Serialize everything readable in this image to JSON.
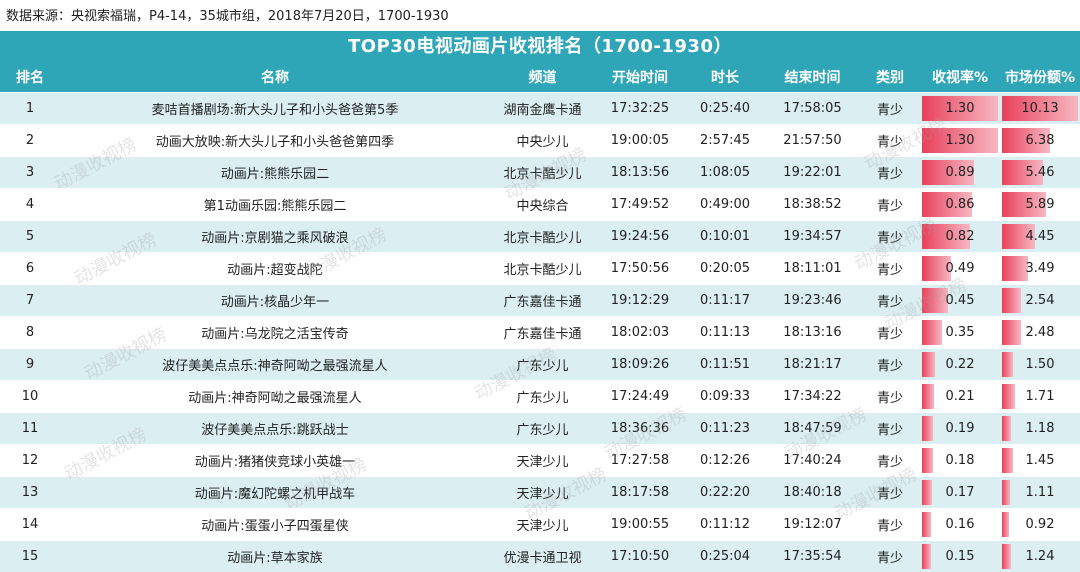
{
  "source_line": "数据来源：央视索福瑞，P4-14，35城市组，2018年7月20日，1700-1930",
  "table_title": "TOP30电视动画片收视排名（1700-1930）",
  "headers": {
    "rank": "排名",
    "name": "名称",
    "channel": "频道",
    "start": "开始时间",
    "duration": "时长",
    "end": "结束时间",
    "type": "类别",
    "rating": "收视率%",
    "share": "市场份额%"
  },
  "colors": {
    "header_bg": "#2fa6b8",
    "row_alt": "#dbeef2",
    "bar": "#e8405a"
  },
  "watermark_text": "动漫收视榜",
  "rows": [
    {
      "rank": "1",
      "name": "麦咭首播剧场:新大头儿子和小头爸爸第5季",
      "channel": "湖南金鹰卡通",
      "start": "17:32:25",
      "duration": "0:25:40",
      "end": "17:58:05",
      "type": "青少",
      "rating": "1.30",
      "share": "10.13"
    },
    {
      "rank": "2",
      "name": "动画大放映:新大头儿子和小头爸爸第四季",
      "channel": "中央少儿",
      "start": "19:00:05",
      "duration": "2:57:45",
      "end": "21:57:50",
      "type": "青少",
      "rating": "1.30",
      "share": "6.38"
    },
    {
      "rank": "3",
      "name": "动画片:熊熊乐园二",
      "channel": "北京卡酷少儿",
      "start": "18:13:56",
      "duration": "1:08:05",
      "end": "19:22:01",
      "type": "青少",
      "rating": "0.89",
      "share": "5.46"
    },
    {
      "rank": "4",
      "name": "第1动画乐园:熊熊乐园二",
      "channel": "中央综合",
      "start": "17:49:52",
      "duration": "0:49:00",
      "end": "18:38:52",
      "type": "青少",
      "rating": "0.86",
      "share": "5.89"
    },
    {
      "rank": "5",
      "name": "动画片:京剧猫之乘风破浪",
      "channel": "北京卡酷少儿",
      "start": "19:24:56",
      "duration": "0:10:01",
      "end": "19:34:57",
      "type": "青少",
      "rating": "0.82",
      "share": "4.45"
    },
    {
      "rank": "6",
      "name": "动画片:超变战陀",
      "channel": "北京卡酷少儿",
      "start": "17:50:56",
      "duration": "0:20:05",
      "end": "18:11:01",
      "type": "青少",
      "rating": "0.49",
      "share": "3.49"
    },
    {
      "rank": "7",
      "name": "动画片:核晶少年一",
      "channel": "广东嘉佳卡通",
      "start": "19:12:29",
      "duration": "0:11:17",
      "end": "19:23:46",
      "type": "青少",
      "rating": "0.45",
      "share": "2.54"
    },
    {
      "rank": "8",
      "name": "动画片:乌龙院之活宝传奇",
      "channel": "广东嘉佳卡通",
      "start": "18:02:03",
      "duration": "0:11:13",
      "end": "18:13:16",
      "type": "青少",
      "rating": "0.35",
      "share": "2.48"
    },
    {
      "rank": "9",
      "name": "波仔美美点点乐:神奇阿呦之最强流星人",
      "channel": "广东少儿",
      "start": "18:09:26",
      "duration": "0:11:51",
      "end": "18:21:17",
      "type": "青少",
      "rating": "0.22",
      "share": "1.50"
    },
    {
      "rank": "10",
      "name": "动画片:神奇阿呦之最强流星人",
      "channel": "广东少儿",
      "start": "17:24:49",
      "duration": "0:09:33",
      "end": "17:34:22",
      "type": "青少",
      "rating": "0.21",
      "share": "1.71"
    },
    {
      "rank": "11",
      "name": "波仔美美点点乐:跳跃战士",
      "channel": "广东少儿",
      "start": "18:36:36",
      "duration": "0:11:23",
      "end": "18:47:59",
      "type": "青少",
      "rating": "0.19",
      "share": "1.18"
    },
    {
      "rank": "12",
      "name": "动画片:猪猪侠竞球小英雄一",
      "channel": "天津少儿",
      "start": "17:27:58",
      "duration": "0:12:26",
      "end": "17:40:24",
      "type": "青少",
      "rating": "0.18",
      "share": "1.45"
    },
    {
      "rank": "13",
      "name": "动画片:魔幻陀螺之机甲战车",
      "channel": "天津少儿",
      "start": "18:17:58",
      "duration": "0:22:20",
      "end": "18:40:18",
      "type": "青少",
      "rating": "0.17",
      "share": "1.11"
    },
    {
      "rank": "14",
      "name": "动画片:蛋蛋小子四蛋星侠",
      "channel": "天津少儿",
      "start": "19:00:55",
      "duration": "0:11:12",
      "end": "19:12:07",
      "type": "青少",
      "rating": "0.16",
      "share": "0.92"
    },
    {
      "rank": "15",
      "name": "动画片:草本家族",
      "channel": "优漫卡通卫视",
      "start": "17:10:50",
      "duration": "0:25:04",
      "end": "17:35:54",
      "type": "青少",
      "rating": "0.15",
      "share": "1.24"
    }
  ]
}
